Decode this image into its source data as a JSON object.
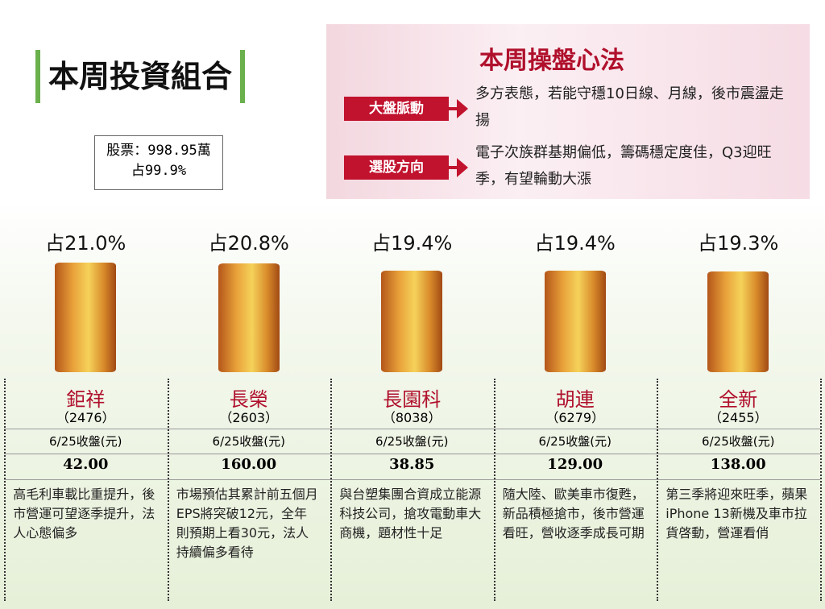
{
  "header": {
    "title": "本周投資組合"
  },
  "stock": {
    "line1": "股票：998.95萬",
    "line2": "占99.9%"
  },
  "tips": {
    "title": "本周操盤心法",
    "items": [
      {
        "label": "大盤脈動",
        "text": "多方表態，若能守穩10日線、月線，後市震盪走揚"
      },
      {
        "label": "選股方向",
        "text": "電子次族群基期偏低，籌碼穩定度佳，Q3迎旺季，有望輪動大漲"
      }
    ]
  },
  "chart_data": {
    "type": "bar",
    "categories": [
      "鉅祥",
      "長榮",
      "長園科",
      "胡連",
      "全新"
    ],
    "values": [
      21.0,
      20.8,
      19.4,
      19.4,
      19.3
    ],
    "value_labels": [
      "占21.0%",
      "占20.8%",
      "占19.4%",
      "占19.4%",
      "占19.3%"
    ],
    "color": "#e9a23a",
    "codes": [
      "（2476）",
      "（2603）",
      "（8038）",
      "（6279）",
      "（2455）"
    ],
    "close_label": "6/25收盤(元)",
    "closes": [
      "42.00",
      "160.00",
      "38.85",
      "129.00",
      "138.00"
    ],
    "notes": [
      "高毛利車載比重提升，後市營運可望逐季提升，法人心態偏多",
      "市場預估其累計前五個月EPS將突破12元，全年則預期上看30元，法人持續偏多看待",
      "與台塑集團合資成立能源科技公司，搶攻電動車大商機，題材性十足",
      "隨大陸、歐美車市復甦，新品積極搶市，後市營運看旺，營收逐季成長可期",
      "第三季將迎來旺季，蘋果iPhone 13新機及車市拉貨啓動，營運看俏"
    ]
  }
}
